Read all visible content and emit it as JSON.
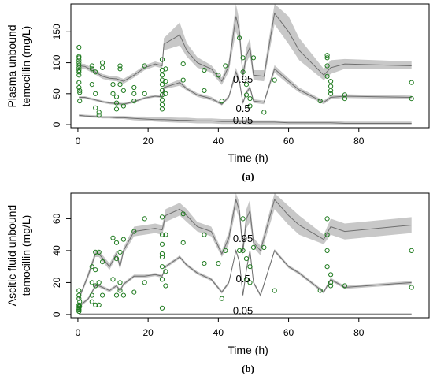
{
  "chart_data": [
    {
      "type": "scatter",
      "panel_label": "(a)",
      "xlabel": "Time (h)",
      "ylabel_line1": "Plasma unbound",
      "ylabel_line2": "temocillin (mg/L)",
      "xticks": [
        "0",
        "20",
        "40",
        "60",
        "80"
      ],
      "yticks": [
        "0",
        "50",
        "100",
        "150"
      ],
      "xlim": [
        -2,
        100
      ],
      "ylim": [
        -5,
        195
      ],
      "grid": false,
      "colors": {
        "points": "#1e7a1e",
        "band": "#c8c8c8",
        "line": "#6e6e6e"
      },
      "annotations": [
        {
          "text": "0.95",
          "x": 47,
          "y": 72
        },
        {
          "text": "0.5",
          "x": 47,
          "y": 25
        },
        {
          "text": "0.05",
          "x": 47,
          "y": 6
        }
      ],
      "quantile_lines": [
        {
          "name": "0.95",
          "x": [
            0.3,
            2,
            5,
            7,
            9,
            11,
            13,
            16,
            19,
            22,
            24,
            24.5,
            29,
            31,
            34,
            38,
            41,
            43,
            45,
            46,
            47,
            48,
            49,
            50,
            53,
            56,
            60,
            63,
            70,
            72,
            76,
            95
          ],
          "y": [
            95,
            94,
            85,
            78,
            75,
            74,
            70,
            80,
            92,
            98,
            95,
            130,
            145,
            120,
            100,
            90,
            70,
            95,
            175,
            150,
            80,
            112,
            125,
            80,
            78,
            180,
            150,
            120,
            80,
            92,
            98,
            95
          ],
          "upper": [
            99,
            98,
            89,
            82,
            79,
            78,
            74,
            84,
            96,
            102,
            99,
            140,
            165,
            132,
            109,
            96,
            76,
            104,
            198,
            168,
            88,
            125,
            140,
            88,
            88,
            198,
            175,
            140,
            90,
            104,
            106,
            102
          ],
          "lower": [
            91,
            90,
            81,
            74,
            71,
            70,
            66,
            76,
            88,
            94,
            91,
            120,
            128,
            110,
            92,
            84,
            64,
            86,
            150,
            134,
            72,
            100,
            112,
            72,
            70,
            162,
            130,
            104,
            72,
            82,
            90,
            90
          ]
        },
        {
          "name": "0.5",
          "x": [
            0.3,
            2,
            5,
            7,
            9,
            11,
            13,
            16,
            19,
            22,
            24,
            24.5,
            29,
            31,
            34,
            38,
            41,
            43,
            45,
            46,
            47,
            48,
            49,
            50,
            53,
            56,
            60,
            63,
            70,
            72,
            76,
            95
          ],
          "y": [
            44,
            44,
            40,
            37,
            35,
            34,
            33,
            37,
            43,
            46,
            45,
            60,
            68,
            58,
            48,
            42,
            33,
            45,
            85,
            70,
            35,
            52,
            60,
            38,
            36,
            90,
            70,
            56,
            36,
            44,
            46,
            44
          ],
          "upper": [
            46,
            46,
            42,
            39,
            37,
            36,
            35,
            39,
            45,
            48,
            47,
            63,
            73,
            61,
            51,
            45,
            35,
            48,
            92,
            75,
            38,
            55,
            64,
            41,
            39,
            96,
            75,
            60,
            39,
            47,
            49,
            47
          ],
          "lower": [
            42,
            42,
            38,
            35,
            33,
            32,
            31,
            35,
            41,
            44,
            43,
            57,
            63,
            55,
            45,
            39,
            31,
            42,
            78,
            65,
            32,
            49,
            56,
            35,
            33,
            84,
            65,
            52,
            33,
            41,
            43,
            41
          ]
        },
        {
          "name": "0.05",
          "x": [
            0.3,
            2,
            5,
            7,
            9,
            11,
            13,
            16,
            19,
            22,
            24,
            24.5,
            29,
            31,
            34,
            38,
            41,
            43,
            45,
            46,
            47,
            48,
            49,
            50,
            53,
            56,
            60,
            63,
            70,
            72,
            76,
            95
          ],
          "y": [
            15,
            14,
            13,
            12,
            12,
            11,
            11,
            10,
            9,
            8,
            8,
            8,
            7,
            7,
            6,
            6,
            5,
            5,
            5,
            5,
            5,
            4,
            4,
            4,
            4,
            4,
            3,
            3,
            3,
            3,
            2,
            2
          ],
          "upper": [
            17,
            16,
            15,
            14,
            14,
            14,
            14,
            13,
            13,
            12,
            12,
            12,
            11,
            11,
            10,
            10,
            9,
            9,
            9,
            8,
            8,
            8,
            8,
            7,
            7,
            7,
            6,
            6,
            6,
            6,
            5,
            5
          ],
          "lower": [
            13,
            12,
            11,
            10,
            10,
            9,
            9,
            7,
            6,
            5,
            4,
            4,
            3,
            3,
            2,
            2,
            1,
            1,
            1,
            1,
            1,
            0.5,
            0.5,
            0.5,
            0.5,
            0.5,
            0.3,
            0.3,
            0.3,
            0.3,
            0.2,
            0.2
          ]
        }
      ],
      "points": {
        "x": [
          0.3,
          0.3,
          0.3,
          0.3,
          0.3,
          0.3,
          0.3,
          0.3,
          0.3,
          0.3,
          0.3,
          0.3,
          0.5,
          0.5,
          0.5,
          4,
          4,
          4,
          5,
          5,
          5,
          6,
          6,
          7,
          7,
          10,
          10,
          11,
          11,
          11,
          12,
          12,
          12,
          13,
          13,
          16,
          16,
          16,
          19,
          19,
          24,
          24,
          24,
          24,
          24,
          24,
          24,
          24,
          24,
          24,
          25,
          25,
          25,
          30,
          30,
          36,
          36,
          40,
          41,
          42,
          46,
          47,
          47,
          48,
          48,
          49,
          49,
          50,
          53,
          56,
          69,
          71,
          71,
          71,
          71,
          72,
          72,
          72,
          72,
          76,
          76,
          95,
          95
        ],
        "y": [
          125,
          110,
          108,
          104,
          100,
          96,
          92,
          88,
          85,
          80,
          68,
          60,
          55,
          52,
          38,
          95,
          90,
          65,
          85,
          50,
          27,
          20,
          15,
          100,
          92,
          65,
          50,
          45,
          35,
          25,
          95,
          90,
          65,
          55,
          30,
          60,
          50,
          38,
          95,
          50,
          105,
          88,
          80,
          72,
          65,
          55,
          48,
          40,
          32,
          25,
          90,
          70,
          50,
          98,
          72,
          88,
          55,
          80,
          38,
          95,
          140,
          108,
          85,
          48,
          65,
          42,
          30,
          108,
          20,
          72,
          38,
          112,
          108,
          95,
          78,
          70,
          62,
          55,
          50,
          48,
          42,
          68,
          42
        ]
      }
    },
    {
      "type": "scatter",
      "panel_label": "(b)",
      "xlabel": "Time (h)",
      "ylabel_line1": "Ascitic fluid unbound",
      "ylabel_line2": "temocillin (mg/L)",
      "xticks": [
        "0",
        "20",
        "40",
        "60",
        "80"
      ],
      "yticks": [
        "0",
        "20",
        "40",
        "60"
      ],
      "xlim": [
        -2,
        100
      ],
      "ylim": [
        -2,
        76
      ],
      "grid": false,
      "colors": {
        "points": "#1e7a1e",
        "band": "#c8c8c8",
        "line": "#6e6e6e"
      },
      "annotations": [
        {
          "text": "0.95",
          "x": 47,
          "y": 47
        },
        {
          "text": "0.5",
          "x": 47,
          "y": 22
        },
        {
          "text": "0.05",
          "x": 47,
          "y": 2
        }
      ],
      "quantile_lines": [
        {
          "name": "0.95",
          "x": [
            0.3,
            3,
            5,
            6,
            9,
            11,
            12,
            13,
            16,
            19,
            22,
            24,
            25,
            29,
            31,
            34,
            38,
            41,
            43,
            45,
            46,
            47,
            48,
            49,
            50,
            52,
            56,
            60,
            63,
            70,
            72,
            76,
            95
          ],
          "y": [
            10,
            25,
            38,
            38,
            30,
            38,
            30,
            40,
            52,
            53,
            54,
            53,
            62,
            66,
            62,
            55,
            52,
            38,
            48,
            72,
            65,
            40,
            60,
            65,
            45,
            40,
            72,
            62,
            56,
            47,
            55,
            52,
            56
          ],
          "upper": [
            11,
            27,
            40,
            40,
            32,
            40,
            32,
            42,
            55,
            56,
            57,
            56,
            66,
            70,
            66,
            58,
            55,
            40,
            52,
            78,
            70,
            43,
            66,
            72,
            48,
            43,
            78,
            68,
            62,
            50,
            60,
            57,
            61
          ],
          "lower": [
            9,
            23,
            36,
            36,
            28,
            36,
            28,
            38,
            49,
            50,
            51,
            50,
            58,
            62,
            58,
            52,
            49,
            36,
            44,
            66,
            60,
            37,
            54,
            58,
            42,
            37,
            66,
            56,
            50,
            44,
            50,
            47,
            51
          ]
        },
        {
          "name": "0.5",
          "x": [
            0.3,
            3,
            5,
            6,
            9,
            11,
            12,
            13,
            16,
            19,
            22,
            24,
            25,
            29,
            31,
            34,
            38,
            41,
            43,
            45,
            46,
            47,
            48,
            49,
            50,
            52,
            56,
            60,
            63,
            70,
            72,
            76,
            95
          ],
          "y": [
            5,
            10,
            18,
            18,
            15,
            18,
            15,
            19,
            24,
            24,
            25,
            24,
            30,
            36,
            31,
            26,
            22,
            14,
            20,
            40,
            33,
            12,
            28,
            40,
            20,
            12,
            40,
            30,
            26,
            14,
            22,
            17,
            20
          ],
          "upper": [
            6,
            11,
            19,
            19,
            16,
            19,
            16,
            20,
            25,
            25,
            26,
            25,
            31,
            37,
            32,
            27,
            23,
            15,
            21,
            41,
            34,
            13,
            29,
            41,
            21,
            13,
            41,
            31,
            27,
            15,
            23,
            18,
            21
          ],
          "lower": [
            4,
            9,
            17,
            17,
            14,
            17,
            14,
            18,
            23,
            23,
            24,
            23,
            29,
            35,
            30,
            25,
            21,
            13,
            19,
            39,
            32,
            11,
            27,
            39,
            19,
            11,
            39,
            29,
            25,
            13,
            21,
            16,
            19
          ]
        },
        {
          "name": "0.05",
          "x": [
            0.3,
            95
          ],
          "y": [
            0.3,
            0.3
          ],
          "upper": [
            0.6,
            0.6
          ],
          "lower": [
            0,
            0
          ]
        }
      ],
      "points": {
        "x": [
          0.3,
          0.3,
          0.3,
          0.3,
          0.3,
          0.3,
          0.3,
          0.3,
          0.3,
          0.3,
          0.5,
          0.5,
          4,
          4,
          4,
          4,
          5,
          5,
          5,
          5,
          6,
          6,
          6,
          7,
          7,
          10,
          10,
          11,
          11,
          11,
          12,
          12,
          12,
          13,
          13,
          16,
          16,
          19,
          19,
          24,
          24,
          24,
          24,
          24,
          24,
          24,
          24,
          25,
          25,
          25,
          30,
          30,
          36,
          36,
          40,
          41,
          42,
          46,
          47,
          47,
          48,
          48,
          49,
          49,
          50,
          53,
          56,
          69,
          71,
          71,
          71,
          71,
          72,
          72,
          72,
          76,
          95,
          95
        ],
        "y": [
          15,
          12,
          10,
          6,
          5,
          4,
          3,
          3,
          2,
          2,
          5,
          8,
          30,
          20,
          12,
          8,
          39,
          28,
          18,
          6,
          39,
          20,
          6,
          33,
          12,
          48,
          22,
          45,
          35,
          12,
          39,
          20,
          15,
          47,
          12,
          52,
          14,
          60,
          20,
          61,
          50,
          44,
          38,
          36,
          30,
          22,
          4,
          50,
          27,
          18,
          63,
          45,
          50,
          32,
          32,
          10,
          40,
          40,
          60,
          40,
          35,
          22,
          20,
          30,
          42,
          42,
          15,
          15,
          60,
          50,
          40,
          30,
          25,
          18,
          20,
          18,
          40,
          17
        ]
      }
    }
  ]
}
